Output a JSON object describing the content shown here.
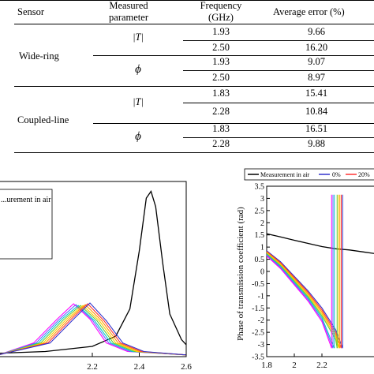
{
  "table": {
    "headers": {
      "sensor": "Sensor",
      "measured_line1": "Measured",
      "measured_line2": "parameter",
      "frequency_line1": "Frequency",
      "frequency_line2": "(GHz)",
      "error": "Average error (%)"
    },
    "groups": [
      {
        "sensor": "Wide-ring",
        "params": [
          {
            "symbol": "|T|",
            "rows": [
              {
                "frequency": "1.93",
                "error": "9.66"
              },
              {
                "frequency": "2.50",
                "error": "16.20"
              }
            ]
          },
          {
            "symbol": "ϕ",
            "rows": [
              {
                "frequency": "1.93",
                "error": "9.07"
              },
              {
                "frequency": "2.50",
                "error": "8.97"
              }
            ]
          }
        ]
      },
      {
        "sensor": "Coupled-line",
        "params": [
          {
            "symbol": "|T|",
            "rows": [
              {
                "frequency": "1.83",
                "error": "15.41"
              },
              {
                "frequency": "2.28",
                "error": "10.84"
              }
            ]
          },
          {
            "symbol": "ϕ",
            "rows": [
              {
                "frequency": "1.83",
                "error": "16.51"
              },
              {
                "frequency": "2.28",
                "error": "9.88"
              }
            ]
          }
        ]
      }
    ]
  },
  "chart_data": [
    {
      "type": "line",
      "title": "",
      "xlabel": "",
      "ylabel": "",
      "xlim": [
        1.8,
        2.6
      ],
      "x_ticks": [
        "2.2",
        "2.4",
        "2.6"
      ],
      "legend": {
        "placement": "top-left",
        "entries": [
          "...urement in air"
        ]
      },
      "series": [
        {
          "color": "#000000",
          "points": [
            [
              1.8,
              0.02
            ],
            [
              2.0,
              0.03
            ],
            [
              2.2,
              0.06
            ],
            [
              2.3,
              0.12
            ],
            [
              2.36,
              0.28
            ],
            [
              2.4,
              0.62
            ],
            [
              2.43,
              0.93
            ],
            [
              2.45,
              0.97
            ],
            [
              2.47,
              0.88
            ],
            [
              2.5,
              0.55
            ],
            [
              2.53,
              0.25
            ],
            [
              2.58,
              0.1
            ],
            [
              2.6,
              0.07
            ]
          ]
        },
        {
          "color": "#ff00ff",
          "points": [
            [
              1.8,
              0.01
            ],
            [
              1.95,
              0.08
            ],
            [
              2.05,
              0.22
            ],
            [
              2.12,
              0.31
            ],
            [
              2.19,
              0.22
            ],
            [
              2.26,
              0.08
            ],
            [
              2.35,
              0.03
            ],
            [
              2.6,
              0.01
            ]
          ]
        },
        {
          "color": "#6666ff",
          "points": [
            [
              1.8,
              0.01
            ],
            [
              1.96,
              0.08
            ],
            [
              2.06,
              0.22
            ],
            [
              2.13,
              0.305
            ],
            [
              2.2,
              0.215
            ],
            [
              2.27,
              0.08
            ],
            [
              2.36,
              0.03
            ],
            [
              2.6,
              0.01
            ]
          ]
        },
        {
          "color": "#00cccc",
          "points": [
            [
              1.8,
              0.01
            ],
            [
              1.97,
              0.08
            ],
            [
              2.07,
              0.22
            ],
            [
              2.14,
              0.3
            ],
            [
              2.21,
              0.21
            ],
            [
              2.28,
              0.08
            ],
            [
              2.37,
              0.03
            ],
            [
              2.6,
              0.01
            ]
          ]
        },
        {
          "color": "#66cc33",
          "points": [
            [
              1.8,
              0.01
            ],
            [
              1.98,
              0.08
            ],
            [
              2.08,
              0.22
            ],
            [
              2.15,
              0.3
            ],
            [
              2.22,
              0.21
            ],
            [
              2.29,
              0.08
            ],
            [
              2.38,
              0.03
            ],
            [
              2.6,
              0.01
            ]
          ]
        },
        {
          "color": "#ffcc00",
          "points": [
            [
              1.8,
              0.01
            ],
            [
              1.99,
              0.08
            ],
            [
              2.09,
              0.22
            ],
            [
              2.16,
              0.3
            ],
            [
              2.23,
              0.21
            ],
            [
              2.3,
              0.08
            ],
            [
              2.39,
              0.03
            ],
            [
              2.6,
              0.01
            ]
          ]
        },
        {
          "color": "#ff9900",
          "points": [
            [
              1.8,
              0.01
            ],
            [
              2.0,
              0.08
            ],
            [
              2.1,
              0.22
            ],
            [
              2.17,
              0.305
            ],
            [
              2.24,
              0.21
            ],
            [
              2.31,
              0.08
            ],
            [
              2.4,
              0.03
            ],
            [
              2.6,
              0.01
            ]
          ]
        },
        {
          "color": "#ff3333",
          "points": [
            [
              1.8,
              0.01
            ],
            [
              2.01,
              0.08
            ],
            [
              2.11,
              0.22
            ],
            [
              2.18,
              0.31
            ],
            [
              2.25,
              0.21
            ],
            [
              2.32,
              0.08
            ],
            [
              2.41,
              0.03
            ],
            [
              2.6,
              0.01
            ]
          ]
        },
        {
          "color": "#3333cc",
          "points": [
            [
              1.8,
              0.01
            ],
            [
              2.02,
              0.08
            ],
            [
              2.12,
              0.22
            ],
            [
              2.19,
              0.315
            ],
            [
              2.26,
              0.21
            ],
            [
              2.33,
              0.08
            ],
            [
              2.42,
              0.03
            ],
            [
              2.6,
              0.01
            ]
          ]
        }
      ]
    },
    {
      "type": "line",
      "title": "",
      "xlabel": "",
      "ylabel": "Phase of transmission coefficient (rad)",
      "xlim": [
        1.8,
        2.6
      ],
      "ylim": [
        -3.5,
        3.5
      ],
      "x_ticks": [
        "1.8",
        "2",
        "2.2"
      ],
      "y_ticks": [
        "3.5",
        "3",
        "2.5",
        "2",
        "1.5",
        "1",
        "0.5",
        "0",
        "-0.5",
        "-1",
        "-1.5",
        "-2",
        "-2.5",
        "-3",
        "-3.5"
      ],
      "legend": {
        "placement": "top",
        "entries": [
          "Measurement in air",
          "0%",
          "20%"
        ]
      },
      "series": [
        {
          "name": "Measurement in air",
          "color": "#000000",
          "points": [
            [
              1.8,
              1.55
            ],
            [
              1.9,
              1.42
            ],
            [
              2.0,
              1.28
            ],
            [
              2.1,
              1.15
            ],
            [
              2.2,
              1.02
            ],
            [
              2.3,
              0.93
            ],
            [
              2.4,
              0.88
            ],
            [
              2.5,
              0.8
            ],
            [
              2.6,
              0.72
            ]
          ]
        },
        {
          "color": "#3333cc",
          "points": [
            [
              1.8,
              0.85
            ],
            [
              1.9,
              0.4
            ],
            [
              2.0,
              -0.2
            ],
            [
              2.1,
              -0.8
            ],
            [
              2.2,
              -1.5
            ],
            [
              2.3,
              -2.4
            ],
            [
              2.35,
              -3.15
            ]
          ]
        },
        {
          "color": "#ff3333",
          "points": [
            [
              1.8,
              0.82
            ],
            [
              1.9,
              0.36
            ],
            [
              2.0,
              -0.25
            ],
            [
              2.1,
              -0.86
            ],
            [
              2.2,
              -1.58
            ],
            [
              2.3,
              -2.5
            ],
            [
              2.34,
              -3.15
            ]
          ]
        },
        {
          "color": "#ff9900",
          "points": [
            [
              1.8,
              0.79
            ],
            [
              1.9,
              0.32
            ],
            [
              2.0,
              -0.3
            ],
            [
              2.1,
              -0.92
            ],
            [
              2.2,
              -1.66
            ],
            [
              2.3,
              -2.6
            ],
            [
              2.33,
              -3.15
            ]
          ]
        },
        {
          "color": "#ffcc00",
          "points": [
            [
              1.8,
              0.76
            ],
            [
              1.9,
              0.28
            ],
            [
              2.0,
              -0.35
            ],
            [
              2.1,
              -0.98
            ],
            [
              2.2,
              -1.74
            ],
            [
              2.3,
              -2.7
            ],
            [
              2.32,
              -3.15
            ]
          ]
        },
        {
          "color": "#66cc33",
          "points": [
            [
              1.8,
              0.73
            ],
            [
              1.9,
              0.24
            ],
            [
              2.0,
              -0.4
            ],
            [
              2.1,
              -1.04
            ],
            [
              2.2,
              -1.82
            ],
            [
              2.3,
              -2.8
            ],
            [
              2.31,
              -3.15
            ]
          ]
        },
        {
          "color": "#00cccc",
          "points": [
            [
              1.8,
              0.7
            ],
            [
              1.9,
              0.2
            ],
            [
              2.0,
              -0.45
            ],
            [
              2.1,
              -1.1
            ],
            [
              2.2,
              -1.9
            ],
            [
              2.29,
              -3.15
            ]
          ]
        },
        {
          "color": "#6666ff",
          "points": [
            [
              1.8,
              0.67
            ],
            [
              1.9,
              0.16
            ],
            [
              2.0,
              -0.5
            ],
            [
              2.1,
              -1.16
            ],
            [
              2.2,
              -1.98
            ],
            [
              2.28,
              -3.15
            ]
          ]
        },
        {
          "color": "#ff00ff",
          "points": [
            [
              1.8,
              0.64
            ],
            [
              1.9,
              0.12
            ],
            [
              2.0,
              -0.55
            ],
            [
              2.1,
              -1.22
            ],
            [
              2.2,
              -2.06
            ],
            [
              2.27,
              -3.15
            ]
          ]
        }
      ]
    }
  ]
}
